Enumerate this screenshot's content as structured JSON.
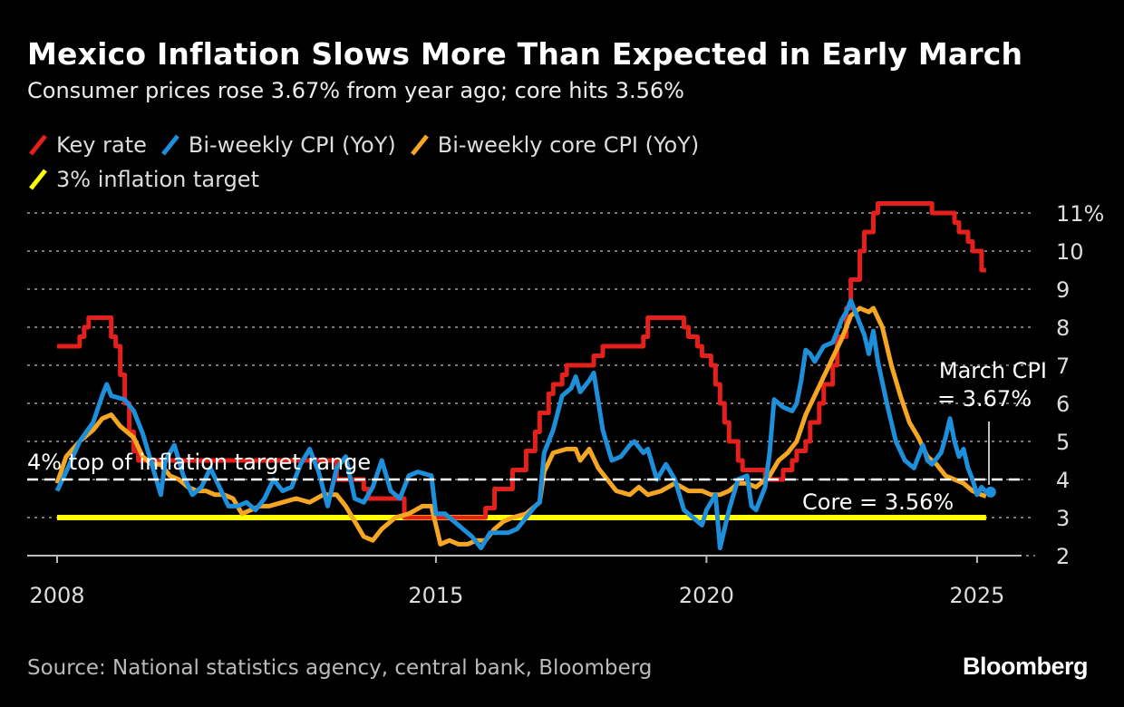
{
  "chart_data": {
    "type": "line",
    "title": "Mexico Inflation Slows More Than Expected in Early March",
    "subtitle": "Consumer prices rose 3.67% from year ago; core hits 3.56%",
    "source": "Source: National statistics agency, central bank, Bloomberg",
    "logo": "Bloomberg",
    "ylim": [
      2,
      11
    ],
    "y_ticks": [
      "11%",
      "10",
      "9",
      "8",
      "7",
      "6",
      "5",
      "4",
      "3",
      "2"
    ],
    "y_tick_values": [
      11,
      10,
      9,
      8,
      7,
      6,
      5,
      4,
      3,
      2
    ],
    "x_ticks": [
      "2008",
      "2015",
      "2020",
      "2025"
    ],
    "xlim": [
      "2007-07",
      "2025-10"
    ],
    "grid": true,
    "legend_position": "top-left",
    "series": [
      {
        "name": "Key rate",
        "color": "#e3201b",
        "step": true,
        "points": [
          [
            "2008-01",
            7.5
          ],
          [
            "2008-06",
            7.75
          ],
          [
            "2008-07",
            8.0
          ],
          [
            "2008-08",
            8.25
          ],
          [
            "2009-01",
            7.75
          ],
          [
            "2009-02",
            7.5
          ],
          [
            "2009-03",
            6.75
          ],
          [
            "2009-04",
            6.0
          ],
          [
            "2009-05",
            5.25
          ],
          [
            "2009-06",
            4.75
          ],
          [
            "2009-07",
            4.5
          ],
          [
            "2013-03",
            4.0
          ],
          [
            "2013-09",
            3.75
          ],
          [
            "2013-10",
            3.5
          ],
          [
            "2014-06",
            3.0
          ],
          [
            "2015-12",
            3.25
          ],
          [
            "2016-02",
            3.75
          ],
          [
            "2016-06",
            4.25
          ],
          [
            "2016-09",
            4.75
          ],
          [
            "2016-11",
            5.25
          ],
          [
            "2016-12",
            5.75
          ],
          [
            "2017-02",
            6.25
          ],
          [
            "2017-03",
            6.5
          ],
          [
            "2017-05",
            6.75
          ],
          [
            "2017-06",
            7.0
          ],
          [
            "2017-12",
            7.25
          ],
          [
            "2018-02",
            7.5
          ],
          [
            "2018-11",
            7.75
          ],
          [
            "2018-12",
            8.25
          ],
          [
            "2019-08",
            8.0
          ],
          [
            "2019-09",
            7.75
          ],
          [
            "2019-11",
            7.5
          ],
          [
            "2019-12",
            7.25
          ],
          [
            "2020-02",
            7.0
          ],
          [
            "2020-03",
            6.5
          ],
          [
            "2020-04",
            6.0
          ],
          [
            "2020-05",
            5.5
          ],
          [
            "2020-06",
            5.0
          ],
          [
            "2020-08",
            4.5
          ],
          [
            "2020-09",
            4.25
          ],
          [
            "2021-02",
            4.0
          ],
          [
            "2021-06",
            4.25
          ],
          [
            "2021-08",
            4.5
          ],
          [
            "2021-09",
            4.75
          ],
          [
            "2021-11",
            5.0
          ],
          [
            "2021-12",
            5.5
          ],
          [
            "2022-02",
            6.0
          ],
          [
            "2022-03",
            6.5
          ],
          [
            "2022-05",
            7.0
          ],
          [
            "2022-06",
            7.75
          ],
          [
            "2022-08",
            8.5
          ],
          [
            "2022-09",
            9.25
          ],
          [
            "2022-11",
            10.0
          ],
          [
            "2022-12",
            10.5
          ],
          [
            "2023-02",
            11.0
          ],
          [
            "2023-03",
            11.25
          ],
          [
            "2024-03",
            11.0
          ],
          [
            "2024-08",
            10.75
          ],
          [
            "2024-09",
            10.5
          ],
          [
            "2024-11",
            10.25
          ],
          [
            "2024-12",
            10.0
          ],
          [
            "2025-02",
            9.5
          ],
          [
            "2025-03",
            9.5
          ]
        ]
      },
      {
        "name": "Bi-weekly CPI (YoY)",
        "color": "#1d8fdb",
        "points": [
          [
            "2008-01",
            3.7
          ],
          [
            "2008-03",
            4.2
          ],
          [
            "2008-06",
            5.0
          ],
          [
            "2008-09",
            5.5
          ],
          [
            "2008-11",
            6.2
          ],
          [
            "2008-12",
            6.5
          ],
          [
            "2009-01",
            6.2
          ],
          [
            "2009-04",
            6.1
          ],
          [
            "2009-06",
            5.8
          ],
          [
            "2009-08",
            5.2
          ],
          [
            "2009-10",
            4.4
          ],
          [
            "2009-12",
            3.6
          ],
          [
            "2010-01",
            4.5
          ],
          [
            "2010-03",
            4.9
          ],
          [
            "2010-05",
            4.1
          ],
          [
            "2010-07",
            3.6
          ],
          [
            "2010-09",
            3.8
          ],
          [
            "2010-11",
            4.3
          ],
          [
            "2011-01",
            3.8
          ],
          [
            "2011-03",
            3.3
          ],
          [
            "2011-05",
            3.3
          ],
          [
            "2011-07",
            3.4
          ],
          [
            "2011-09",
            3.2
          ],
          [
            "2011-11",
            3.5
          ],
          [
            "2012-01",
            4.0
          ],
          [
            "2012-03",
            3.7
          ],
          [
            "2012-05",
            3.8
          ],
          [
            "2012-07",
            4.4
          ],
          [
            "2012-09",
            4.8
          ],
          [
            "2012-11",
            4.2
          ],
          [
            "2013-01",
            3.3
          ],
          [
            "2013-03",
            4.3
          ],
          [
            "2013-05",
            4.6
          ],
          [
            "2013-07",
            3.5
          ],
          [
            "2013-09",
            3.4
          ],
          [
            "2013-11",
            3.8
          ],
          [
            "2014-01",
            4.5
          ],
          [
            "2014-03",
            3.7
          ],
          [
            "2014-05",
            3.5
          ],
          [
            "2014-07",
            4.1
          ],
          [
            "2014-09",
            4.2
          ],
          [
            "2014-12",
            4.1
          ],
          [
            "2015-01",
            3.1
          ],
          [
            "2015-03",
            3.1
          ],
          [
            "2015-05",
            2.9
          ],
          [
            "2015-07",
            2.7
          ],
          [
            "2015-09",
            2.5
          ],
          [
            "2015-11",
            2.2
          ],
          [
            "2016-01",
            2.6
          ],
          [
            "2016-03",
            2.6
          ],
          [
            "2016-05",
            2.6
          ],
          [
            "2016-07",
            2.7
          ],
          [
            "2016-09",
            3.0
          ],
          [
            "2016-11",
            3.3
          ],
          [
            "2016-12",
            3.4
          ],
          [
            "2017-01",
            4.7
          ],
          [
            "2017-03",
            5.3
          ],
          [
            "2017-05",
            6.2
          ],
          [
            "2017-07",
            6.4
          ],
          [
            "2017-08",
            6.7
          ],
          [
            "2017-09",
            6.3
          ],
          [
            "2017-11",
            6.6
          ],
          [
            "2017-12",
            6.8
          ],
          [
            "2018-02",
            5.3
          ],
          [
            "2018-04",
            4.5
          ],
          [
            "2018-06",
            4.6
          ],
          [
            "2018-08",
            4.9
          ],
          [
            "2018-09",
            5.0
          ],
          [
            "2018-11",
            4.7
          ],
          [
            "2018-12",
            4.8
          ],
          [
            "2019-02",
            4.0
          ],
          [
            "2019-04",
            4.4
          ],
          [
            "2019-06",
            4.0
          ],
          [
            "2019-08",
            3.2
          ],
          [
            "2019-10",
            3.0
          ],
          [
            "2019-12",
            2.8
          ],
          [
            "2020-01",
            3.2
          ],
          [
            "2020-03",
            3.6
          ],
          [
            "2020-04",
            2.2
          ],
          [
            "2020-06",
            3.2
          ],
          [
            "2020-08",
            4.0
          ],
          [
            "2020-10",
            4.1
          ],
          [
            "2020-11",
            3.3
          ],
          [
            "2020-12",
            3.2
          ],
          [
            "2021-01",
            3.5
          ],
          [
            "2021-02",
            3.8
          ],
          [
            "2021-03",
            4.7
          ],
          [
            "2021-04",
            6.1
          ],
          [
            "2021-06",
            5.9
          ],
          [
            "2021-08",
            5.8
          ],
          [
            "2021-09",
            6.0
          ],
          [
            "2021-10",
            6.6
          ],
          [
            "2021-11",
            7.4
          ],
          [
            "2021-12",
            7.3
          ],
          [
            "2022-01",
            7.1
          ],
          [
            "2022-02",
            7.3
          ],
          [
            "2022-03",
            7.5
          ],
          [
            "2022-05",
            7.6
          ],
          [
            "2022-07",
            8.2
          ],
          [
            "2022-08",
            8.4
          ],
          [
            "2022-09",
            8.7
          ],
          [
            "2022-10",
            8.4
          ],
          [
            "2022-12",
            7.8
          ],
          [
            "2023-01",
            7.3
          ],
          [
            "2023-02",
            7.9
          ],
          [
            "2023-03",
            7.1
          ],
          [
            "2023-05",
            6.0
          ],
          [
            "2023-07",
            5.0
          ],
          [
            "2023-09",
            4.5
          ],
          [
            "2023-11",
            4.3
          ],
          [
            "2024-01",
            4.9
          ],
          [
            "2024-02",
            4.5
          ],
          [
            "2024-03",
            4.4
          ],
          [
            "2024-05",
            4.7
          ],
          [
            "2024-06",
            5.1
          ],
          [
            "2024-07",
            5.6
          ],
          [
            "2024-08",
            5.0
          ],
          [
            "2024-09",
            4.6
          ],
          [
            "2024-10",
            4.8
          ],
          [
            "2024-11",
            4.3
          ],
          [
            "2024-12",
            4.0
          ],
          [
            "2025-01",
            3.6
          ],
          [
            "2025-02",
            3.8
          ],
          [
            "2025-03",
            3.67
          ]
        ]
      },
      {
        "name": "Bi-weekly core CPI (YoY)",
        "color": "#f5a623",
        "points": [
          [
            "2008-01",
            3.9
          ],
          [
            "2008-03",
            4.6
          ],
          [
            "2008-06",
            5.0
          ],
          [
            "2008-09",
            5.3
          ],
          [
            "2008-11",
            5.6
          ],
          [
            "2009-01",
            5.7
          ],
          [
            "2009-03",
            5.4
          ],
          [
            "2009-06",
            5.1
          ],
          [
            "2009-08",
            4.6
          ],
          [
            "2009-10",
            4.4
          ],
          [
            "2009-12",
            4.4
          ],
          [
            "2010-02",
            4.1
          ],
          [
            "2010-04",
            4.0
          ],
          [
            "2010-06",
            3.8
          ],
          [
            "2010-08",
            3.7
          ],
          [
            "2010-10",
            3.7
          ],
          [
            "2010-12",
            3.6
          ],
          [
            "2011-02",
            3.6
          ],
          [
            "2011-04",
            3.5
          ],
          [
            "2011-06",
            3.1
          ],
          [
            "2011-08",
            3.2
          ],
          [
            "2011-10",
            3.3
          ],
          [
            "2011-12",
            3.3
          ],
          [
            "2012-03",
            3.4
          ],
          [
            "2012-06",
            3.5
          ],
          [
            "2012-09",
            3.4
          ],
          [
            "2012-12",
            3.6
          ],
          [
            "2013-03",
            3.6
          ],
          [
            "2013-05",
            3.3
          ],
          [
            "2013-07",
            2.9
          ],
          [
            "2013-09",
            2.5
          ],
          [
            "2013-11",
            2.4
          ],
          [
            "2014-01",
            2.7
          ],
          [
            "2014-04",
            3.0
          ],
          [
            "2014-07",
            3.1
          ],
          [
            "2014-10",
            3.3
          ],
          [
            "2014-12",
            3.3
          ],
          [
            "2015-02",
            2.3
          ],
          [
            "2015-04",
            2.4
          ],
          [
            "2015-06",
            2.3
          ],
          [
            "2015-08",
            2.3
          ],
          [
            "2015-10",
            2.4
          ],
          [
            "2015-12",
            2.4
          ],
          [
            "2016-02",
            2.7
          ],
          [
            "2016-04",
            2.9
          ],
          [
            "2016-06",
            3.0
          ],
          [
            "2016-09",
            3.1
          ],
          [
            "2016-12",
            3.4
          ],
          [
            "2017-01",
            4.2
          ],
          [
            "2017-03",
            4.7
          ],
          [
            "2017-06",
            4.8
          ],
          [
            "2017-08",
            4.8
          ],
          [
            "2017-09",
            4.5
          ],
          [
            "2017-11",
            4.8
          ],
          [
            "2018-01",
            4.3
          ],
          [
            "2018-03",
            4.0
          ],
          [
            "2018-05",
            3.7
          ],
          [
            "2018-08",
            3.6
          ],
          [
            "2018-10",
            3.8
          ],
          [
            "2018-12",
            3.6
          ],
          [
            "2019-03",
            3.7
          ],
          [
            "2019-06",
            3.9
          ],
          [
            "2019-09",
            3.7
          ],
          [
            "2019-12",
            3.7
          ],
          [
            "2020-02",
            3.6
          ],
          [
            "2020-04",
            3.6
          ],
          [
            "2020-06",
            3.7
          ],
          [
            "2020-08",
            3.9
          ],
          [
            "2020-10",
            3.9
          ],
          [
            "2020-12",
            3.8
          ],
          [
            "2021-03",
            4.1
          ],
          [
            "2021-05",
            4.5
          ],
          [
            "2021-07",
            4.7
          ],
          [
            "2021-09",
            5.0
          ],
          [
            "2021-11",
            5.7
          ],
          [
            "2022-01",
            6.2
          ],
          [
            "2022-03",
            6.7
          ],
          [
            "2022-05",
            7.2
          ],
          [
            "2022-07",
            7.7
          ],
          [
            "2022-09",
            8.3
          ],
          [
            "2022-11",
            8.5
          ],
          [
            "2023-01",
            8.4
          ],
          [
            "2023-02",
            8.5
          ],
          [
            "2023-04",
            8.0
          ],
          [
            "2023-06",
            7.0
          ],
          [
            "2023-08",
            6.2
          ],
          [
            "2023-10",
            5.5
          ],
          [
            "2023-12",
            5.1
          ],
          [
            "2024-02",
            4.6
          ],
          [
            "2024-04",
            4.4
          ],
          [
            "2024-06",
            4.1
          ],
          [
            "2024-08",
            4.0
          ],
          [
            "2024-10",
            3.9
          ],
          [
            "2024-12",
            3.7
          ],
          [
            "2025-02",
            3.6
          ],
          [
            "2025-03",
            3.56
          ]
        ]
      },
      {
        "name": "3% inflation target",
        "color": "#ffff00",
        "points": [
          [
            "2008-01",
            3
          ],
          [
            "2025-03",
            3
          ]
        ]
      }
    ],
    "reference_line": {
      "value": 4,
      "label": "4% top of inflation target range",
      "color": "#ffffff"
    },
    "annotations": {
      "cpi_line1": "March CPI",
      "cpi_line2": "= 3.67%",
      "core": "Core = 3.56%"
    }
  }
}
